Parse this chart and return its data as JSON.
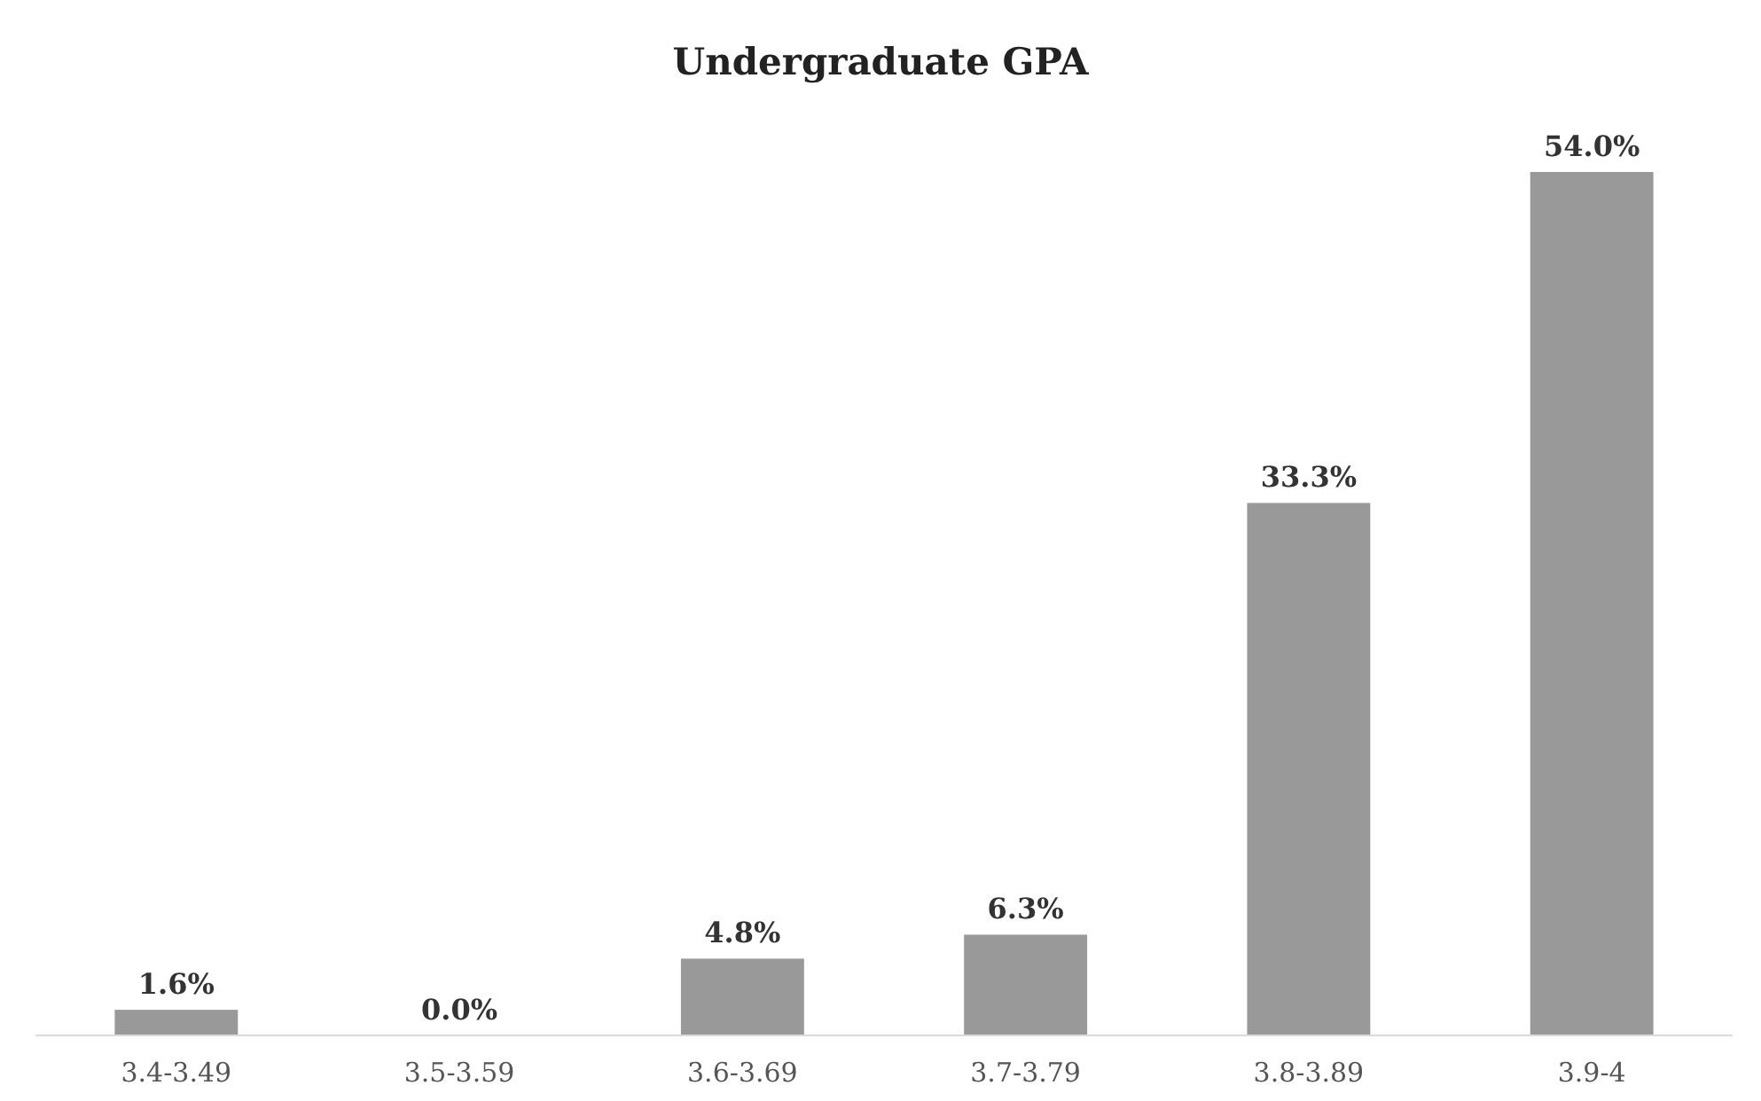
{
  "chart_data": {
    "type": "bar",
    "title": "Undergraduate GPA",
    "categories": [
      "3.4-3.49",
      "3.5-3.59",
      "3.6-3.69",
      "3.7-3.79",
      "3.8-3.89",
      "3.9-4"
    ],
    "values": [
      1.6,
      0.0,
      4.8,
      6.3,
      33.3,
      54.0
    ],
    "value_labels": [
      "1.6%",
      "0.0%",
      "4.8%",
      "6.3%",
      "33.3%",
      "54.0%"
    ],
    "color": "#999999"
  }
}
